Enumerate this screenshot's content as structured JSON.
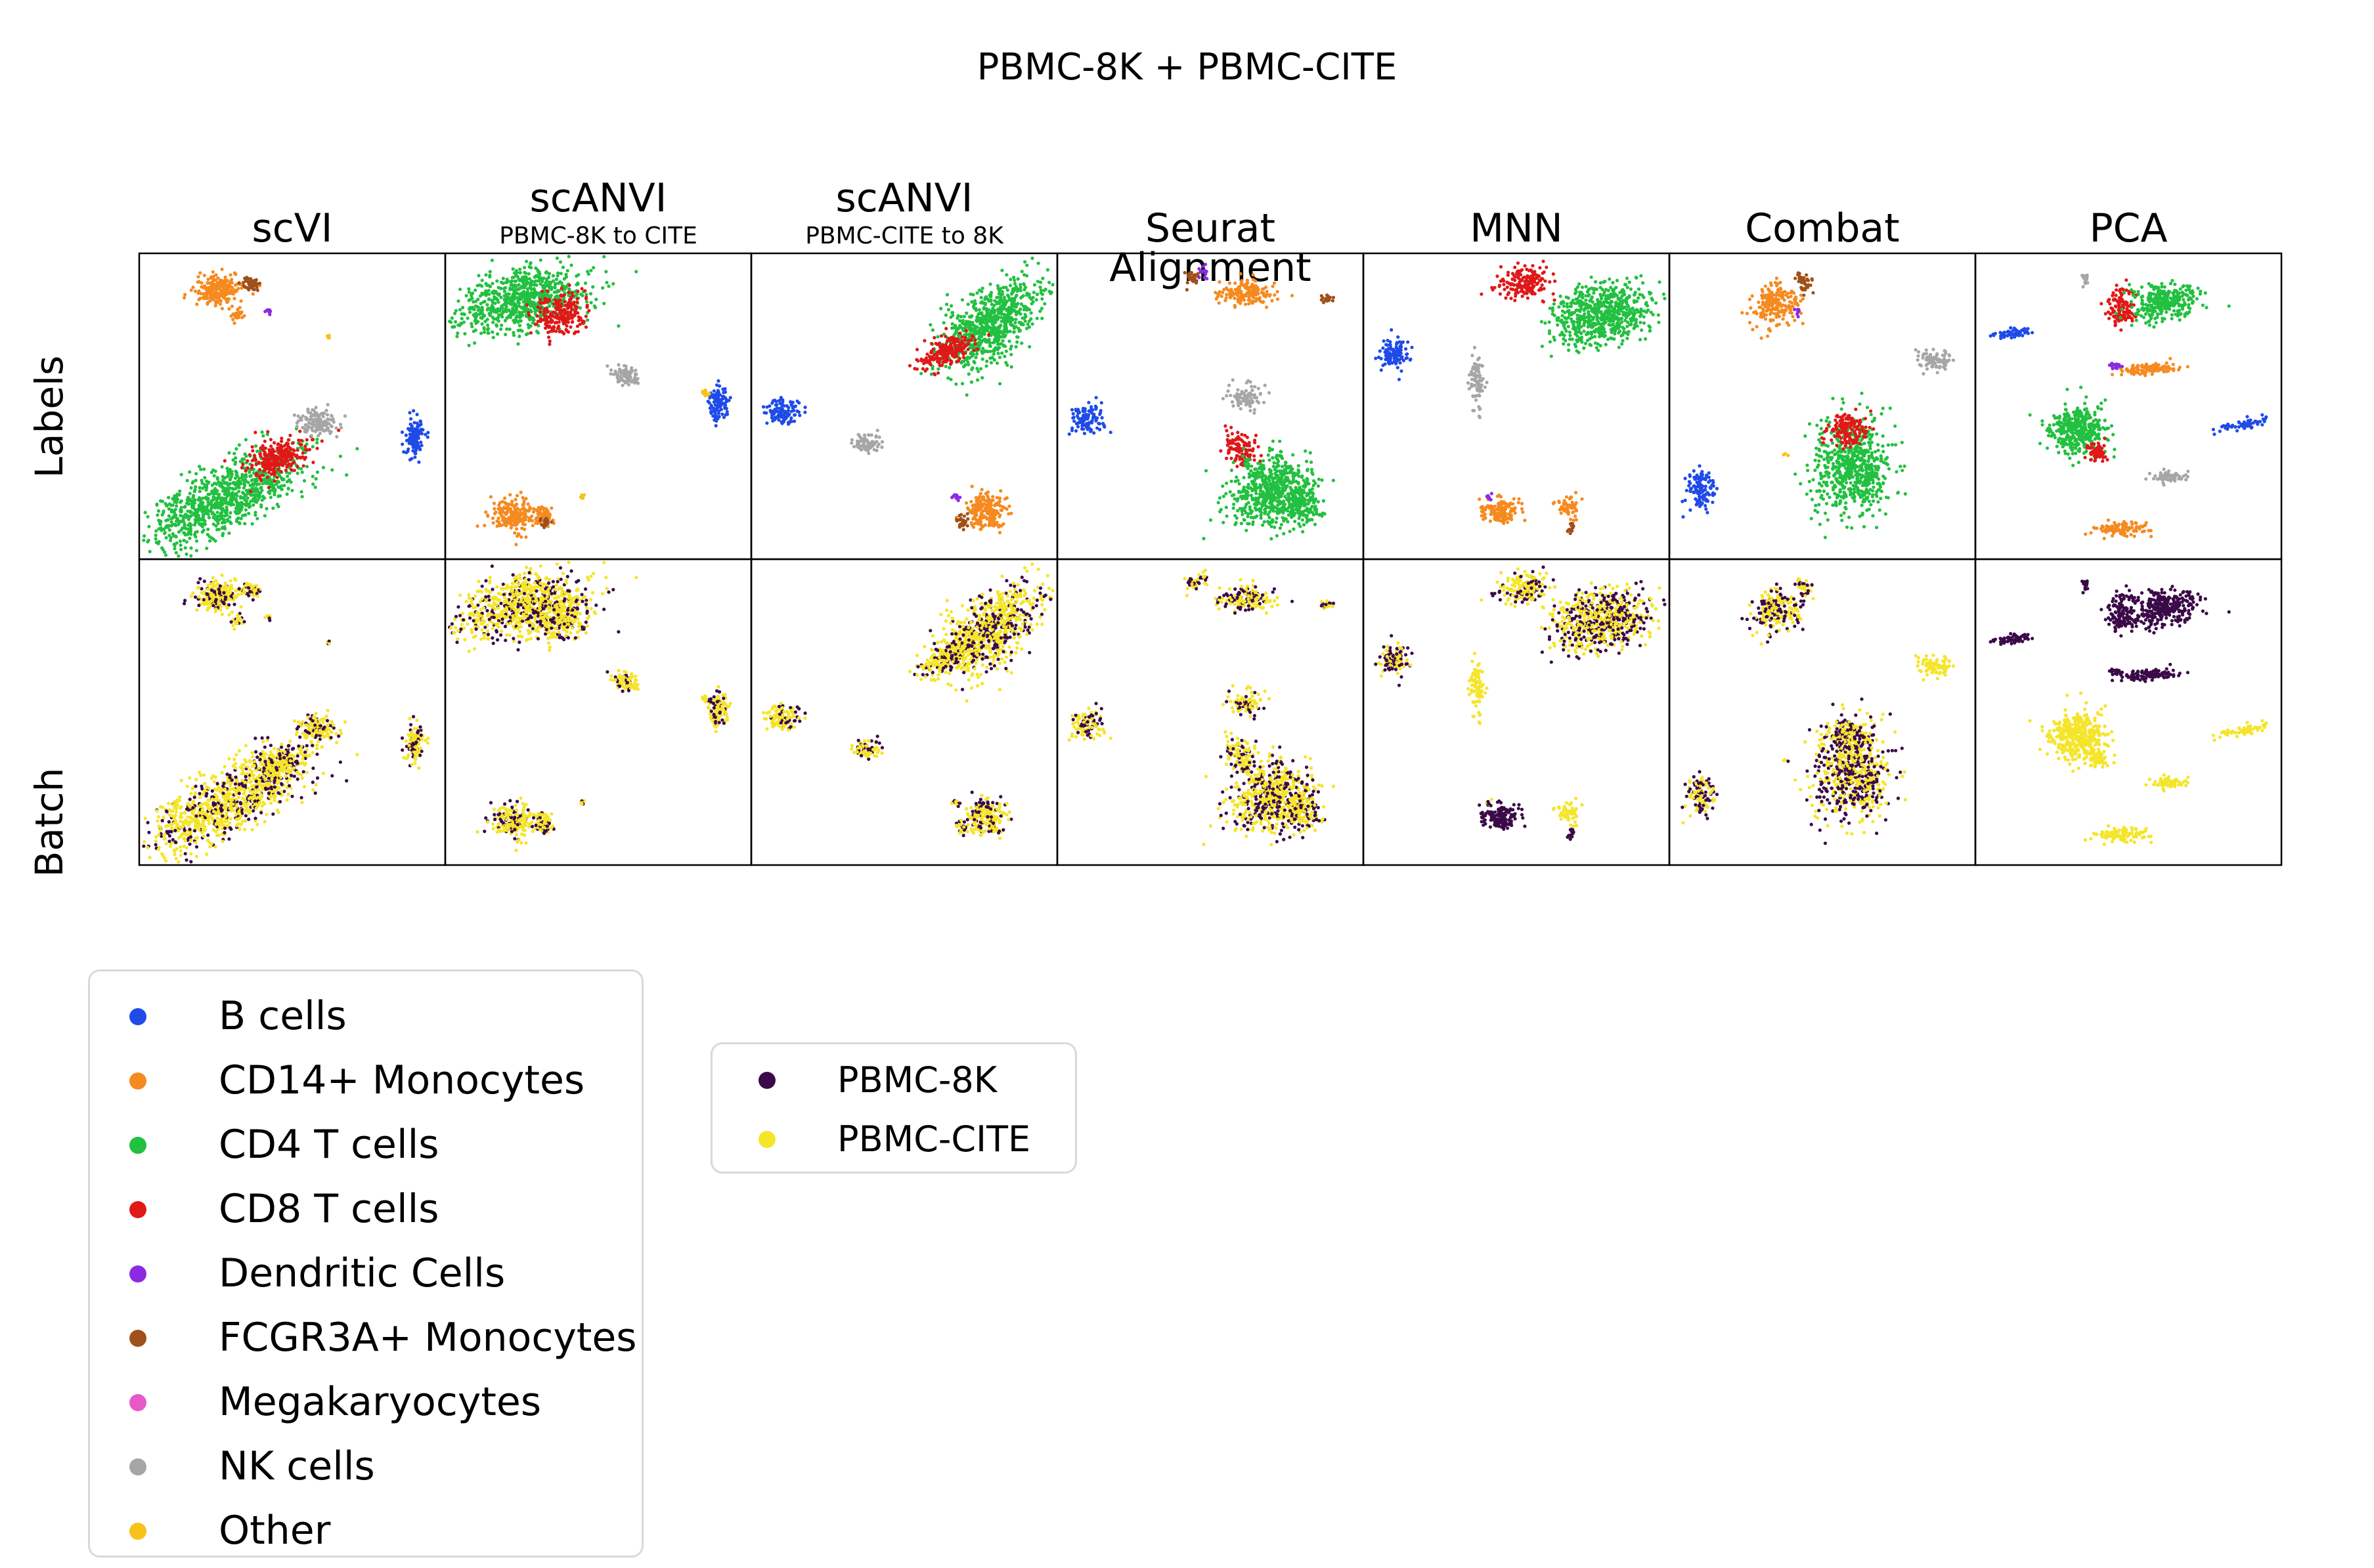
{
  "title": "PBMC-8K + PBMC-CITE",
  "columns": [
    {
      "label": "scVI",
      "sub": ""
    },
    {
      "label": "scANVI",
      "sub": "PBMC-8K to CITE"
    },
    {
      "label": "scANVI",
      "sub": "PBMC-CITE to 8K"
    },
    {
      "label": "Seurat Alignment",
      "sub": ""
    },
    {
      "label": "MNN",
      "sub": ""
    },
    {
      "label": "Combat",
      "sub": ""
    },
    {
      "label": "PCA",
      "sub": ""
    }
  ],
  "rows": [
    {
      "label": "Labels"
    },
    {
      "label": "Batch"
    }
  ],
  "legend_labels": {
    "items": [
      {
        "label": "B cells",
        "color": "#1f4be8"
      },
      {
        "label": "CD14+ Monocytes",
        "color": "#f58a1f"
      },
      {
        "label": "CD4 T cells",
        "color": "#22c040"
      },
      {
        "label": "CD8 T cells",
        "color": "#e01818"
      },
      {
        "label": "Dendritic Cells",
        "color": "#8a2be2"
      },
      {
        "label": "FCGR3A+ Monocytes",
        "color": "#a0501a"
      },
      {
        "label": "Megakaryocytes",
        "color": "#e858c8"
      },
      {
        "label": "NK cells",
        "color": "#a6a6a6"
      },
      {
        "label": "Other",
        "color": "#f7c21a"
      }
    ]
  },
  "legend_batch": {
    "items": [
      {
        "label": "PBMC-8K",
        "color": "#3b0a48"
      },
      {
        "label": "PBMC-CITE",
        "color": "#f5e52a"
      }
    ]
  },
  "chart_data": {
    "type": "scatter",
    "title": "PBMC-8K + PBMC-CITE",
    "panels_description_rows": [
      "Labels",
      "Batch"
    ],
    "methods": [
      "scVI",
      "scANVI PBMC-8K to CITE",
      "scANVI PBMC-CITE to 8K",
      "Seurat Alignment",
      "MNN",
      "Combat",
      "PCA"
    ],
    "grid": false,
    "axes_visible": false
  }
}
